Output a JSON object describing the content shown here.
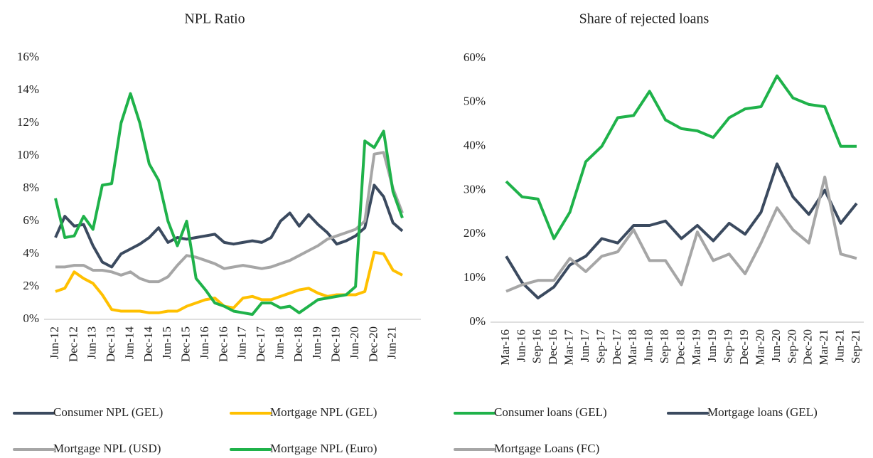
{
  "chart_data": [
    {
      "type": "line",
      "title": "NPL Ratio",
      "categories": [
        "Jun-12",
        null,
        "Dec-12",
        null,
        "Jun-13",
        null,
        "Dec-13",
        null,
        "Jun-14",
        null,
        "Dec-14",
        null,
        "Jun-15",
        null,
        "Dec-15",
        null,
        "Jun-16",
        null,
        "Dec-16",
        null,
        "Jun-17",
        null,
        "Dec-17",
        null,
        "Jun-18",
        null,
        "Dec-18",
        null,
        "Jun-19",
        null,
        "Dec-19",
        null,
        "Jun-20",
        null,
        "Dec-20",
        null,
        "Jun-21",
        null
      ],
      "series": [
        {
          "name": "Consumer NPL (GEL)",
          "color": "#3b4a5f",
          "values": [
            5.0,
            6.3,
            5.7,
            5.8,
            4.5,
            3.5,
            3.2,
            4.0,
            4.3,
            4.6,
            5.0,
            5.6,
            4.7,
            5.0,
            4.9,
            5.0,
            5.1,
            5.2,
            4.7,
            4.6,
            4.7,
            4.8,
            4.7,
            5.0,
            6.0,
            6.5,
            5.7,
            6.4,
            5.8,
            5.3,
            4.6,
            4.8,
            5.1,
            5.6,
            8.2,
            7.5,
            5.9,
            5.4
          ]
        },
        {
          "name": "Mortgage NPL (GEL)",
          "color": "#ffc000",
          "values": [
            1.7,
            1.9,
            2.9,
            2.5,
            2.2,
            1.5,
            0.6,
            0.5,
            0.5,
            0.5,
            0.4,
            0.4,
            0.5,
            0.5,
            0.8,
            1.0,
            1.2,
            1.3,
            0.8,
            0.7,
            1.3,
            1.4,
            1.2,
            1.2,
            1.4,
            1.6,
            1.8,
            1.9,
            1.6,
            1.4,
            1.5,
            1.5,
            1.5,
            1.7,
            4.1,
            4.0,
            3.0,
            2.7
          ]
        },
        {
          "name": "Mortgage NPL (USD)",
          "color": "#a6a6a6",
          "values": [
            3.2,
            3.2,
            3.3,
            3.3,
            3.0,
            3.0,
            2.9,
            2.7,
            2.9,
            2.5,
            2.3,
            2.3,
            2.6,
            3.3,
            3.9,
            3.8,
            3.6,
            3.4,
            3.1,
            3.2,
            3.3,
            3.2,
            3.1,
            3.2,
            3.4,
            3.6,
            3.9,
            4.2,
            4.5,
            4.9,
            5.1,
            5.3,
            5.5,
            6.0,
            10.1,
            10.2,
            8.0,
            6.5
          ]
        },
        {
          "name": "Mortgage NPL (Euro)",
          "color": "#1fb24a",
          "values": [
            7.4,
            5.0,
            5.1,
            6.3,
            5.5,
            8.2,
            8.3,
            12.0,
            13.8,
            12.0,
            9.5,
            8.5,
            6.0,
            4.5,
            6.0,
            2.5,
            1.8,
            1.0,
            0.8,
            0.5,
            0.4,
            0.3,
            1.0,
            1.0,
            0.7,
            0.8,
            0.4,
            0.8,
            1.2,
            1.3,
            1.4,
            1.5,
            2.0,
            10.9,
            10.5,
            11.5,
            7.8,
            6.2
          ]
        }
      ],
      "ylim": [
        0,
        16
      ],
      "yticks": [
        {
          "value": 0,
          "label": "0%"
        },
        {
          "value": 2,
          "label": "2%"
        },
        {
          "value": 4,
          "label": "4%"
        },
        {
          "value": 6,
          "label": "6%"
        },
        {
          "value": 8,
          "label": "8%"
        },
        {
          "value": 10,
          "label": "10%"
        },
        {
          "value": 12,
          "label": "12%"
        },
        {
          "value": 14,
          "label": "14%"
        },
        {
          "value": 16,
          "label": "16%"
        }
      ],
      "grid": false
    },
    {
      "type": "line",
      "title": "Share of rejected loans",
      "categories": [
        "Mar-16",
        "Jun-16",
        "Sep-16",
        "Dec-16",
        "Mar-17",
        "Jun-17",
        "Sep-17",
        "Dec-17",
        "Mar-18",
        "Jun-18",
        "Sep-18",
        "Dec-18",
        "Mar-19",
        "Jun-19",
        "Sep-19",
        "Dec-19",
        "Mar-20",
        "Jun-20",
        "Sep-20",
        "Dec-20",
        "Mar-21",
        "Jun-21",
        "Sep-21"
      ],
      "series": [
        {
          "name": "Consumer loans (GEL)",
          "color": "#1fb24a",
          "values": [
            32,
            28.5,
            28,
            19,
            25,
            36.5,
            40,
            46.5,
            47,
            52.5,
            46,
            44,
            43.5,
            42,
            46.5,
            48.5,
            49,
            56,
            51,
            49.5,
            49,
            40,
            40
          ]
        },
        {
          "name": "Mortgage loans (GEL)",
          "color": "#3b4a5f",
          "values": [
            15,
            9,
            5.5,
            8,
            13,
            15,
            19,
            18,
            22,
            22,
            23,
            19,
            22,
            18.5,
            22.5,
            20,
            25,
            36,
            28.5,
            24.5,
            30,
            22.5,
            27
          ]
        },
        {
          "name": "Mortgage Loans (FC)",
          "color": "#a6a6a6",
          "values": [
            7,
            8.5,
            9.5,
            9.5,
            14.5,
            11.5,
            15,
            16,
            21,
            14,
            14,
            8.5,
            20.5,
            14,
            15.5,
            11,
            18,
            26,
            21,
            18,
            33,
            15.5,
            14.5
          ]
        }
      ],
      "ylim": [
        0,
        60
      ],
      "yticks": [
        {
          "value": 0,
          "label": "0%"
        },
        {
          "value": 10,
          "label": "10%"
        },
        {
          "value": 20,
          "label": "20%"
        },
        {
          "value": 30,
          "label": "30%"
        },
        {
          "value": 40,
          "label": "40%"
        },
        {
          "value": 50,
          "label": "50%"
        },
        {
          "value": 60,
          "label": "60%"
        }
      ],
      "grid": false
    }
  ]
}
